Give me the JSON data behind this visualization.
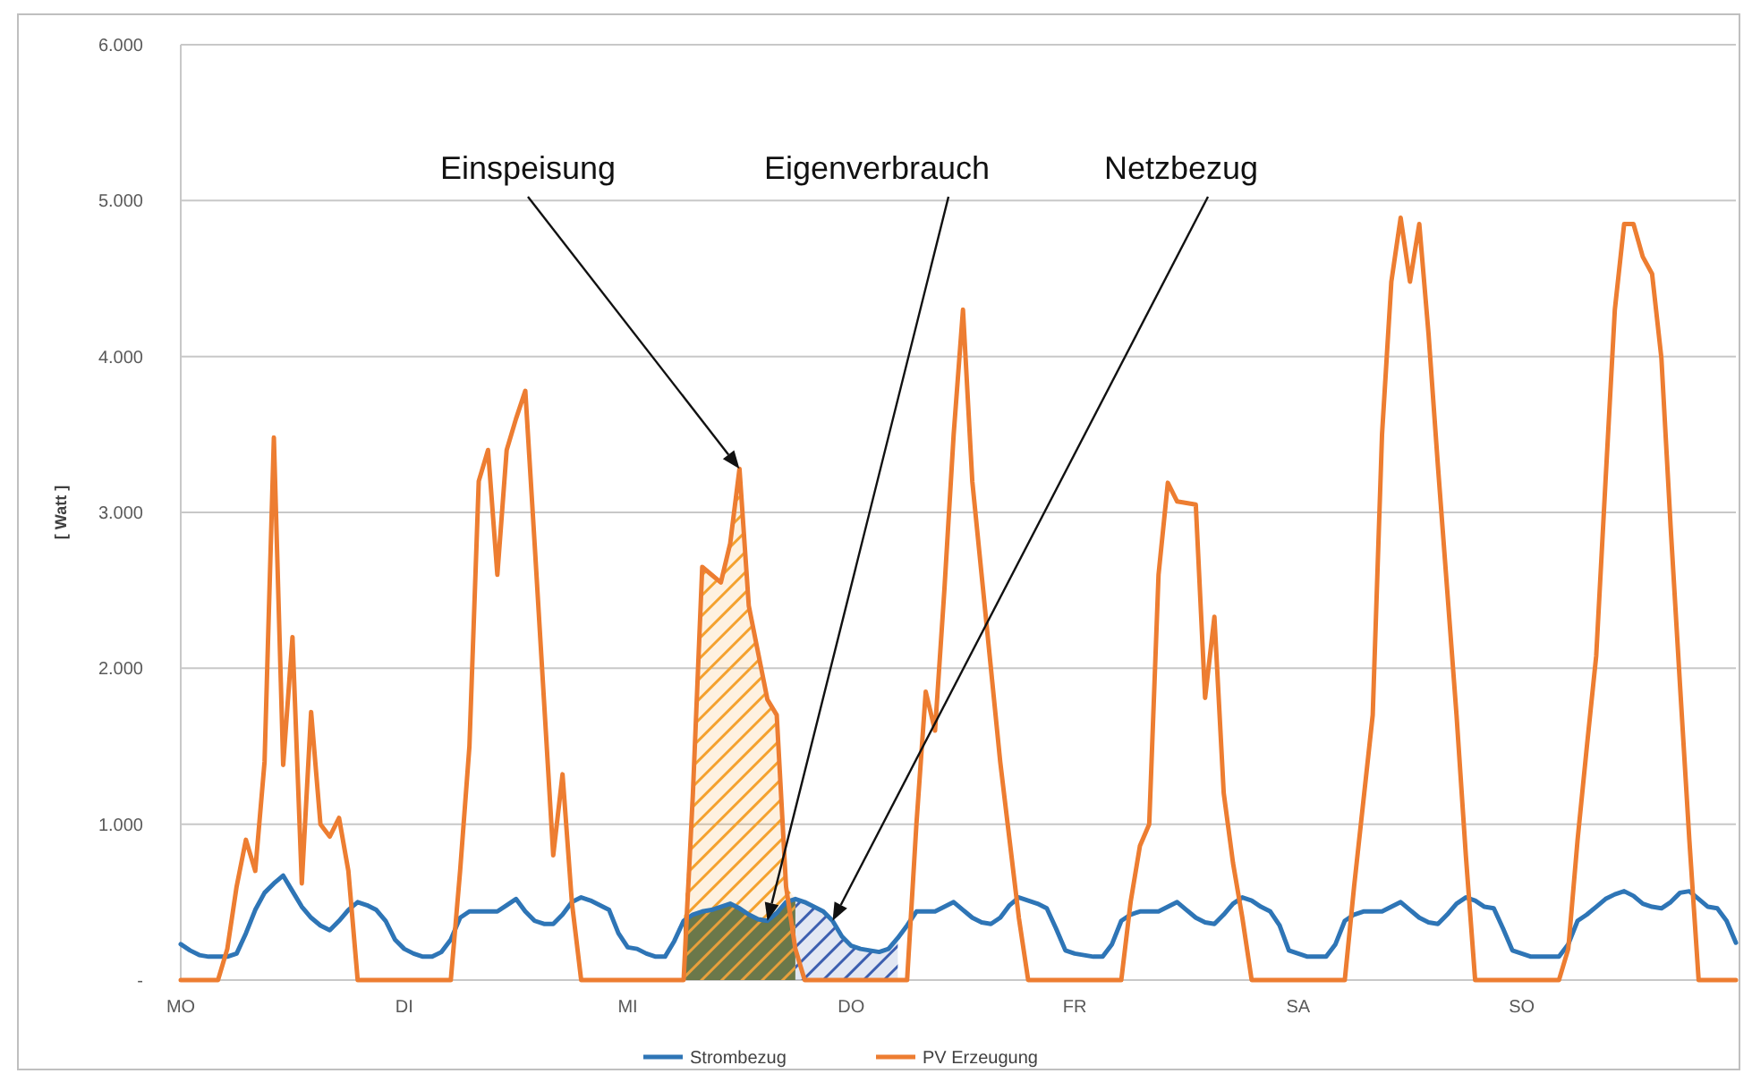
{
  "chart_data": {
    "type": "line",
    "ylabel": "[ Watt ]",
    "categories": [
      "MO",
      null,
      null,
      null,
      null,
      null,
      null,
      null,
      null,
      null,
      null,
      null,
      null,
      null,
      null,
      null,
      null,
      null,
      null,
      null,
      null,
      null,
      null,
      null,
      "DI",
      null,
      null,
      null,
      null,
      null,
      null,
      null,
      null,
      null,
      null,
      null,
      null,
      null,
      null,
      null,
      null,
      null,
      null,
      null,
      null,
      null,
      null,
      null,
      "MI",
      null,
      null,
      null,
      null,
      null,
      null,
      null,
      null,
      null,
      null,
      null,
      null,
      null,
      null,
      null,
      null,
      null,
      null,
      null,
      null,
      null,
      null,
      null,
      "DO",
      null,
      null,
      null,
      null,
      null,
      null,
      null,
      null,
      null,
      null,
      null,
      null,
      null,
      null,
      null,
      null,
      null,
      null,
      null,
      null,
      null,
      null,
      null,
      "FR",
      null,
      null,
      null,
      null,
      null,
      null,
      null,
      null,
      null,
      null,
      null,
      null,
      null,
      null,
      null,
      null,
      null,
      null,
      null,
      null,
      null,
      null,
      null,
      "SA",
      null,
      null,
      null,
      null,
      null,
      null,
      null,
      null,
      null,
      null,
      null,
      null,
      null,
      null,
      null,
      null,
      null,
      null,
      null,
      null,
      null,
      null,
      null,
      "SO",
      null,
      null,
      null,
      null,
      null,
      null,
      null,
      null,
      null,
      null,
      null,
      null,
      null,
      null,
      null,
      null,
      null,
      null,
      null,
      null,
      null,
      null,
      null
    ],
    "ylim": [
      0,
      6000
    ],
    "yticks": [
      {
        "value": 0,
        "label": "-"
      },
      {
        "value": 1000,
        "label": "1.000"
      },
      {
        "value": 2000,
        "label": "2.000"
      },
      {
        "value": 3000,
        "label": "3.000"
      },
      {
        "value": 4000,
        "label": "4.000"
      },
      {
        "value": 5000,
        "label": "5.000"
      },
      {
        "value": 6000,
        "label": "6.000"
      }
    ],
    "grid": "y",
    "legend": "bottom",
    "line_style": "solid",
    "marker": "none",
    "series": [
      {
        "type": "area",
        "color": "#f4a12e",
        "values": [
          null,
          null,
          null,
          null,
          null,
          null,
          null,
          null,
          null,
          null,
          null,
          null,
          null,
          null,
          null,
          null,
          null,
          null,
          null,
          null,
          null,
          null,
          null,
          null,
          null,
          null,
          null,
          null,
          null,
          null,
          null,
          null,
          null,
          null,
          null,
          null,
          null,
          null,
          null,
          null,
          null,
          null,
          null,
          null,
          null,
          null,
          null,
          null,
          null,
          null,
          null,
          null,
          null,
          null,
          380,
          1200,
          2650,
          2600,
          2550,
          2800,
          3280,
          2400,
          2100,
          1800,
          1700,
          600,
          520,
          null,
          null,
          null,
          null,
          null,
          null,
          null,
          null,
          null,
          null,
          null,
          null,
          null,
          null,
          null,
          null,
          null,
          null,
          null,
          null,
          null,
          null,
          null,
          null,
          null,
          null,
          null,
          null,
          null,
          null,
          null,
          null,
          null,
          null,
          null,
          null,
          null,
          null,
          null,
          null,
          null,
          null,
          null,
          null,
          null,
          null,
          null,
          null,
          null,
          null,
          null,
          null,
          null,
          null,
          null,
          null,
          null,
          null,
          null,
          null,
          null,
          null,
          null,
          null,
          null,
          null,
          null,
          null,
          null,
          null,
          null,
          null,
          null,
          null,
          null,
          null,
          null,
          null,
          null,
          null,
          null,
          null,
          null,
          null,
          null,
          null,
          null,
          null,
          null,
          null,
          null,
          null,
          null,
          null,
          null,
          null,
          null,
          null,
          null,
          null,
          null
        ]
      },
      {
        "type": "area",
        "color": "#5b6b3a",
        "values": [
          null,
          null,
          null,
          null,
          null,
          null,
          null,
          null,
          null,
          null,
          null,
          null,
          null,
          null,
          null,
          null,
          null,
          null,
          null,
          null,
          null,
          null,
          null,
          null,
          null,
          null,
          null,
          null,
          null,
          null,
          null,
          null,
          null,
          null,
          null,
          null,
          null,
          null,
          null,
          null,
          null,
          null,
          null,
          null,
          null,
          null,
          null,
          null,
          null,
          null,
          null,
          null,
          null,
          null,
          380,
          420,
          440,
          450,
          470,
          490,
          460,
          420,
          390,
          380,
          430,
          500,
          520,
          null,
          null,
          null,
          null,
          null,
          null,
          null,
          null,
          null,
          null,
          null,
          null,
          null,
          null,
          null,
          null,
          null,
          null,
          null,
          null,
          null,
          null,
          null,
          null,
          null,
          null,
          null,
          null,
          null,
          null,
          null,
          null,
          null,
          null,
          null,
          null,
          null,
          null,
          null,
          null,
          null,
          null,
          null,
          null,
          null,
          null,
          null,
          null,
          null,
          null,
          null,
          null,
          null,
          null,
          null,
          null,
          null,
          null,
          null,
          null,
          null,
          null,
          null,
          null,
          null,
          null,
          null,
          null,
          null,
          null,
          null,
          null,
          null,
          null,
          null,
          null,
          null,
          null,
          null,
          null,
          null,
          null,
          null,
          null,
          null,
          null,
          null,
          null,
          null,
          null,
          null,
          null,
          null,
          null,
          null,
          null,
          null,
          null,
          null,
          null,
          null
        ]
      },
      {
        "type": "area",
        "color": "#3d5fb0",
        "values": [
          null,
          null,
          null,
          null,
          null,
          null,
          null,
          null,
          null,
          null,
          null,
          null,
          null,
          null,
          null,
          null,
          null,
          null,
          null,
          null,
          null,
          null,
          null,
          null,
          null,
          null,
          null,
          null,
          null,
          null,
          null,
          null,
          null,
          null,
          null,
          null,
          null,
          null,
          null,
          null,
          null,
          null,
          null,
          null,
          null,
          null,
          null,
          null,
          null,
          null,
          null,
          null,
          null,
          null,
          null,
          null,
          null,
          null,
          null,
          null,
          null,
          null,
          null,
          null,
          null,
          null,
          520,
          500,
          470,
          440,
          380,
          280,
          220,
          200,
          190,
          180,
          200,
          270,
          null,
          null,
          null,
          null,
          null,
          null,
          null,
          null,
          null,
          null,
          null,
          null,
          null,
          null,
          null,
          null,
          null,
          null,
          null,
          null,
          null,
          null,
          null,
          null,
          null,
          null,
          null,
          null,
          null,
          null,
          null,
          null,
          null,
          null,
          null,
          null,
          null,
          null,
          null,
          null,
          null,
          null,
          null,
          null,
          null,
          null,
          null,
          null,
          null,
          null,
          null,
          null,
          null,
          null,
          null,
          null,
          null,
          null,
          null,
          null,
          null,
          null,
          null,
          null,
          null,
          null,
          null,
          null,
          null,
          null,
          null,
          null,
          null,
          null,
          null,
          null,
          null,
          null,
          null,
          null,
          null,
          null,
          null,
          null,
          null,
          null,
          null,
          null,
          null,
          null
        ]
      },
      {
        "name": "Strombezug",
        "color": "#2e75b6",
        "values": [
          230,
          190,
          160,
          150,
          150,
          150,
          170,
          300,
          450,
          560,
          620,
          670,
          570,
          470,
          400,
          350,
          320,
          380,
          450,
          500,
          480,
          450,
          380,
          260,
          200,
          170,
          150,
          150,
          180,
          260,
          400,
          440,
          440,
          440,
          440,
          480,
          520,
          440,
          380,
          360,
          360,
          420,
          500,
          530,
          510,
          480,
          450,
          300,
          210,
          200,
          170,
          150,
          150,
          250,
          380,
          420,
          440,
          450,
          470,
          490,
          460,
          420,
          390,
          380,
          430,
          500,
          520,
          500,
          470,
          440,
          380,
          280,
          220,
          200,
          190,
          180,
          200,
          270,
          350,
          440,
          440,
          440,
          470,
          500,
          450,
          400,
          370,
          360,
          400,
          480,
          530,
          510,
          490,
          460,
          330,
          190,
          170,
          160,
          150,
          150,
          230,
          380,
          420,
          440,
          440,
          440,
          470,
          500,
          450,
          400,
          370,
          360,
          420,
          490,
          530,
          510,
          470,
          440,
          350,
          190,
          170,
          150,
          150,
          150,
          230,
          380,
          420,
          440,
          440,
          440,
          470,
          500,
          450,
          400,
          370,
          360,
          420,
          490,
          530,
          510,
          470,
          460,
          330,
          190,
          170,
          150,
          150,
          150,
          150,
          230,
          380,
          420,
          470,
          520,
          550,
          570,
          540,
          490,
          470,
          460,
          500,
          560,
          570,
          520,
          470,
          460,
          380,
          240
        ]
      },
      {
        "name": "PV Erzeugung",
        "color": "#ed7d31",
        "values": [
          0,
          0,
          0,
          0,
          0,
          200,
          600,
          900,
          700,
          1400,
          3480,
          1380,
          2200,
          620,
          1720,
          1000,
          920,
          1040,
          700,
          0,
          0,
          0,
          0,
          0,
          0,
          0,
          0,
          0,
          0,
          0,
          700,
          1500,
          3200,
          3400,
          2600,
          3400,
          3600,
          3780,
          2800,
          1800,
          800,
          1320,
          500,
          0,
          0,
          0,
          0,
          0,
          0,
          0,
          0,
          0,
          0,
          0,
          0,
          1200,
          2650,
          2600,
          2550,
          2800,
          3280,
          2400,
          2100,
          1800,
          1700,
          600,
          200,
          0,
          0,
          0,
          0,
          0,
          0,
          0,
          0,
          0,
          0,
          0,
          0,
          1000,
          1850,
          1600,
          2500,
          3500,
          4300,
          3200,
          2600,
          2000,
          1400,
          900,
          400,
          0,
          0,
          0,
          0,
          0,
          0,
          0,
          0,
          0,
          0,
          0,
          500,
          860,
          1000,
          2600,
          3190,
          3070,
          3060,
          3050,
          1810,
          2330,
          1200,
          750,
          400,
          0,
          0,
          0,
          0,
          0,
          0,
          0,
          0,
          0,
          0,
          0,
          600,
          1150,
          1700,
          3500,
          4480,
          4890,
          4480,
          4850,
          4140,
          3300,
          2500,
          1700,
          800,
          0,
          0,
          0,
          0,
          0,
          0,
          0,
          0,
          0,
          0,
          200,
          900,
          1500,
          2080,
          3200,
          4300,
          4850,
          4850,
          4640,
          4530,
          3990,
          2900,
          1890,
          900,
          0,
          0,
          0,
          0,
          0
        ]
      }
    ],
    "annotations": [
      "Einspeisung",
      "Eigenverbrauch",
      "Netzbezug"
    ]
  }
}
